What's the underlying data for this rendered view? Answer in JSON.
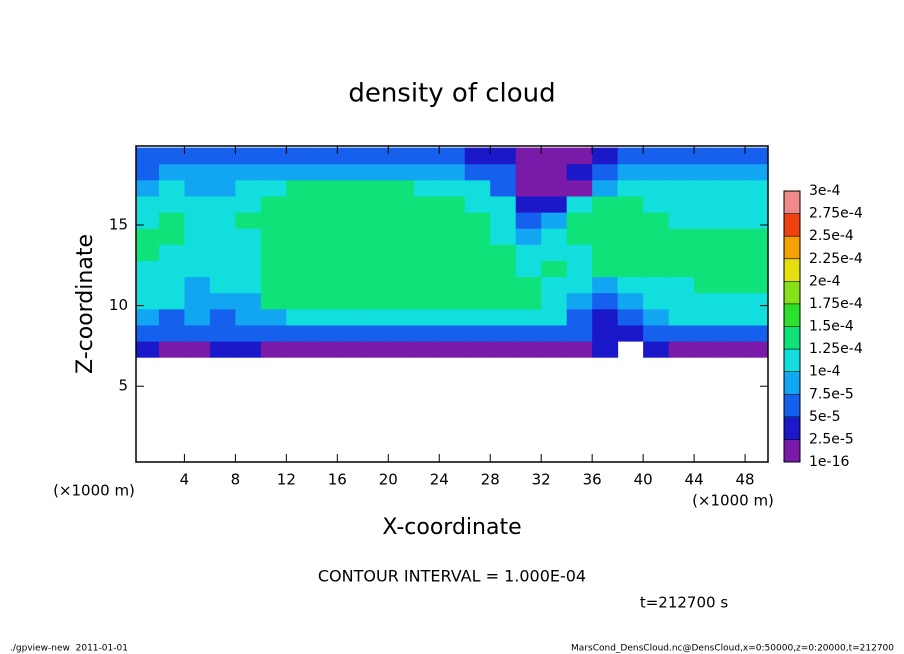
{
  "chart_data": {
    "type": "heatmap",
    "title": "density of cloud",
    "x_label": "X-coordinate",
    "y_label": "Z-coordinate",
    "x_unit": "(×1000 m)",
    "y_unit": "(×1000 m)",
    "annotation": "CONTOUR INTERVAL = 1.000E-04",
    "time_label": "t=212700 s",
    "footer_left": "./gpview-new  2011-01-01",
    "footer_right": "MarsCond_DensCloud.nc@DensCloud,x=0:50000,z=0:20000,t=212700",
    "xlim": [
      0.2,
      49.8
    ],
    "ylim": [
      0.3,
      19.9
    ],
    "xticks": [
      4,
      8,
      12,
      16,
      20,
      24,
      28,
      32,
      36,
      40,
      44,
      48
    ],
    "yticks": [
      5,
      10,
      15
    ],
    "x": [
      1,
      3,
      5,
      7,
      9,
      11,
      13,
      15,
      17,
      19,
      21,
      23,
      25,
      27,
      29,
      31,
      33,
      35,
      37,
      39,
      41,
      43,
      45,
      47,
      49
    ],
    "y": [
      7.3,
      8.3,
      9.3,
      10.3,
      11.3,
      12.3,
      13.3,
      14.3,
      15.3,
      16.3,
      17.3,
      18.3,
      19.3
    ],
    "values": [
      [
        3e-05,
        2e-05,
        2e-05,
        3e-05,
        3e-05,
        2e-05,
        2e-05,
        2e-05,
        2e-05,
        2e-05,
        2e-05,
        2e-05,
        2e-05,
        2e-05,
        2e-05,
        2e-05,
        2e-05,
        2e-05,
        3e-05,
        null,
        3e-05,
        2e-05,
        2e-05,
        2e-05,
        2e-05
      ],
      [
        6e-05,
        5e-05,
        6e-05,
        6e-05,
        5e-05,
        6e-05,
        6e-05,
        6e-05,
        6e-05,
        6e-05,
        6e-05,
        6e-05,
        6e-05,
        6e-05,
        6e-05,
        6e-05,
        6e-05,
        5e-05,
        4e-05,
        4e-05,
        5e-05,
        6e-05,
        6e-05,
        6e-05,
        6e-05
      ],
      [
        8e-05,
        7e-05,
        8e-05,
        7e-05,
        8e-05,
        9e-05,
        0.0001,
        0.0001,
        0.0001,
        0.0001,
        0.0001,
        0.0001,
        0.0001,
        0.0001,
        0.0001,
        0.0001,
        0.0001,
        6e-05,
        4e-05,
        5e-05,
        9e-05,
        0.0001,
        0.0001,
        0.0001,
        0.0001
      ],
      [
        0.00011,
        0.0001,
        9e-05,
        8e-05,
        9e-05,
        0.00013,
        0.00013,
        0.00013,
        0.00013,
        0.00013,
        0.00013,
        0.00013,
        0.00013,
        0.00013,
        0.00013,
        0.00013,
        0.00012,
        8e-05,
        6e-05,
        8e-05,
        0.00011,
        0.00012,
        0.00012,
        0.00012,
        0.00012
      ],
      [
        0.00012,
        0.00011,
        9e-05,
        0.0001,
        0.00011,
        0.000135,
        0.000135,
        0.000135,
        0.000135,
        0.000135,
        0.000135,
        0.000135,
        0.000135,
        0.000135,
        0.000135,
        0.00013,
        0.00012,
        0.0001,
        9e-05,
        0.00012,
        0.00012,
        0.00012,
        0.00013,
        0.00013,
        0.00013
      ],
      [
        0.00012,
        0.00012,
        0.0001,
        0.00011,
        0.00012,
        0.00014,
        0.00014,
        0.00014,
        0.00014,
        0.00014,
        0.00014,
        0.00014,
        0.00014,
        0.00014,
        0.00014,
        0.00012,
        0.00013,
        0.00011,
        0.00013,
        0.00013,
        0.00013,
        0.00013,
        0.00013,
        0.00013,
        0.00013
      ],
      [
        0.00013,
        0.00012,
        0.00011,
        0.0001,
        0.00012,
        0.00014,
        0.00014,
        0.00014,
        0.00014,
        0.00014,
        0.00014,
        0.00014,
        0.00014,
        0.00014,
        0.00013,
        0.00011,
        0.00012,
        0.00012,
        0.00014,
        0.00013,
        0.00013,
        0.00013,
        0.00013,
        0.00013,
        0.00013
      ],
      [
        0.00013,
        0.00013,
        0.00011,
        0.0001,
        0.00012,
        0.00014,
        0.000145,
        0.000145,
        0.000145,
        0.000145,
        0.000145,
        0.000145,
        0.00014,
        0.00014,
        0.00012,
        9e-05,
        0.00011,
        0.00013,
        0.00014,
        0.00014,
        0.00013,
        0.00013,
        0.00013,
        0.00013,
        0.00013
      ],
      [
        0.00012,
        0.00014,
        0.00012,
        0.00011,
        0.00013,
        0.00014,
        0.00014,
        0.00014,
        0.00014,
        0.00014,
        0.00014,
        0.00014,
        0.00014,
        0.00013,
        0.00011,
        6e-05,
        8e-05,
        0.00013,
        0.00014,
        0.00014,
        0.00013,
        0.00012,
        0.00012,
        0.00012,
        0.00012
      ],
      [
        0.0001,
        0.00012,
        0.00011,
        0.0001,
        0.00011,
        0.00013,
        0.000135,
        0.000135,
        0.000135,
        0.000135,
        0.000135,
        0.000135,
        0.00013,
        0.00012,
        0.0001,
        3e-05,
        4e-05,
        0.0001,
        0.00013,
        0.00013,
        0.00012,
        0.00011,
        0.00011,
        0.00011,
        0.00011
      ],
      [
        9e-05,
        0.0001,
        9e-05,
        8e-05,
        0.0001,
        0.00012,
        0.000125,
        0.000125,
        0.000125,
        0.000125,
        0.000125,
        0.00012,
        0.00011,
        0.0001,
        7e-05,
        2e-05,
        1e-05,
        2e-05,
        8e-05,
        0.00011,
        0.00011,
        0.0001,
        0.0001,
        0.0001,
        0.0001
      ],
      [
        7e-05,
        8e-05,
        8e-05,
        8e-05,
        8e-05,
        9e-05,
        9e-05,
        9e-05,
        9e-05,
        9e-05,
        9e-05,
        9e-05,
        8e-05,
        7e-05,
        5e-05,
        1e-05,
        2e-05,
        3e-05,
        5e-05,
        8e-05,
        8e-05,
        8e-05,
        8e-05,
        8e-05,
        8e-05
      ],
      [
        5e-05,
        5e-05,
        5e-05,
        5e-05,
        5e-05,
        6e-05,
        6e-05,
        6e-05,
        6e-05,
        6e-05,
        6e-05,
        6e-05,
        5e-05,
        4e-05,
        3e-05,
        1e-05,
        1e-05,
        2e-05,
        4e-05,
        5e-05,
        5e-05,
        5e-05,
        5e-05,
        5e-05,
        5e-05
      ]
    ],
    "levels": [
      {
        "value": 1e-16,
        "label": "1e-16"
      },
      {
        "value": 2.5e-05,
        "label": "2.5e-5"
      },
      {
        "value": 5e-05,
        "label": "5e-5"
      },
      {
        "value": 7.5e-05,
        "label": "7.5e-5"
      },
      {
        "value": 0.0001,
        "label": "1e-4"
      },
      {
        "value": 0.000125,
        "label": "1.25e-4"
      },
      {
        "value": 0.00015,
        "label": "1.5e-4"
      },
      {
        "value": 0.000175,
        "label": "1.75e-4"
      },
      {
        "value": 0.0002,
        "label": "2e-4"
      },
      {
        "value": 0.000225,
        "label": "2.25e-4"
      },
      {
        "value": 0.00025,
        "label": "2.5e-4"
      },
      {
        "value": 0.000275,
        "label": "2.75e-4"
      },
      {
        "value": 0.0003,
        "label": "3e-4"
      }
    ],
    "colors": [
      "#7a1aa8",
      "#1a18c8",
      "#1660ee",
      "#12a6f2",
      "#12dede",
      "#10e27a",
      "#2ee02e",
      "#86e01c",
      "#e4e010",
      "#f4a000",
      "#f04010",
      "#f08a8a"
    ]
  }
}
